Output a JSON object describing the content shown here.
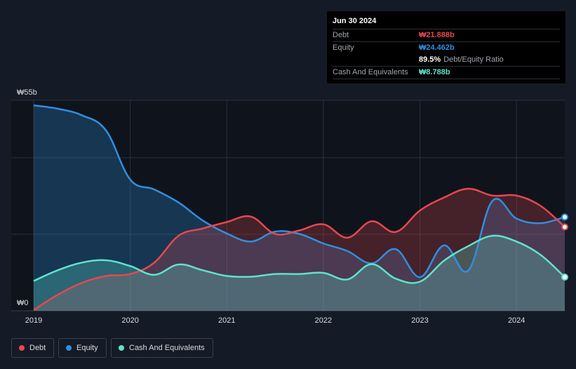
{
  "colors": {
    "background": "#151b26",
    "plot_bg": "#0f141c",
    "grid": "#2a313d",
    "axis_text": "#d8dbe0",
    "debt": "#e8474f",
    "equity": "#2f8fe0",
    "cash": "#5ee3cc"
  },
  "tooltip": {
    "date": "Jun 30 2024",
    "debt_label": "Debt",
    "debt_value": "₩21.888b",
    "equity_label": "Equity",
    "equity_value": "₩24.462b",
    "ratio_value": "89.5%",
    "ratio_label": "Debt/Equity Ratio",
    "cash_label": "Cash And Equivalents",
    "cash_value": "₩8.788b"
  },
  "legend": {
    "debt": "Debt",
    "equity": "Equity",
    "cash": "Cash And Equivalents"
  },
  "chart_data": {
    "type": "area",
    "title": "",
    "xlabel": "",
    "ylabel": "",
    "y_label_top": "₩55b",
    "y_label_bottom": "₩0",
    "ylim": [
      0,
      55
    ],
    "xlim": [
      2019.0,
      2024.5
    ],
    "x_ticks": [
      2019,
      2020,
      2021,
      2022,
      2023,
      2024
    ],
    "x_tick_labels": [
      "2019",
      "2020",
      "2021",
      "2022",
      "2023",
      "2024"
    ],
    "series": [
      {
        "name": "Debt",
        "points": [
          [
            2019.0,
            0.2
          ],
          [
            2019.25,
            4.2
          ],
          [
            2019.5,
            7.3
          ],
          [
            2019.75,
            9.1
          ],
          [
            2020.0,
            9.6
          ],
          [
            2020.25,
            12.6
          ],
          [
            2020.5,
            19.6
          ],
          [
            2020.75,
            21.5
          ],
          [
            2021.0,
            23.2
          ],
          [
            2021.25,
            24.6
          ],
          [
            2021.5,
            20.1
          ],
          [
            2021.75,
            21.0
          ],
          [
            2022.0,
            22.6
          ],
          [
            2022.25,
            19.1
          ],
          [
            2022.5,
            23.4
          ],
          [
            2022.75,
            20.6
          ],
          [
            2023.0,
            26.2
          ],
          [
            2023.25,
            29.6
          ],
          [
            2023.5,
            31.9
          ],
          [
            2023.75,
            30.1
          ],
          [
            2024.0,
            30.1
          ],
          [
            2024.25,
            27.4
          ],
          [
            2024.5,
            21.9
          ]
        ]
      },
      {
        "name": "Equity",
        "points": [
          [
            2019.0,
            53.7
          ],
          [
            2019.25,
            52.8
          ],
          [
            2019.5,
            51.1
          ],
          [
            2019.75,
            47.1
          ],
          [
            2020.0,
            34.3
          ],
          [
            2020.25,
            31.7
          ],
          [
            2020.5,
            28.3
          ],
          [
            2020.75,
            23.6
          ],
          [
            2021.0,
            20.2
          ],
          [
            2021.25,
            18.1
          ],
          [
            2021.5,
            20.7
          ],
          [
            2021.75,
            20.1
          ],
          [
            2022.0,
            17.6
          ],
          [
            2022.25,
            15.6
          ],
          [
            2022.5,
            12.4
          ],
          [
            2022.75,
            16.1
          ],
          [
            2023.0,
            8.8
          ],
          [
            2023.25,
            17.1
          ],
          [
            2023.5,
            10.5
          ],
          [
            2023.75,
            28.7
          ],
          [
            2024.0,
            24.1
          ],
          [
            2024.25,
            22.9
          ],
          [
            2024.5,
            24.5
          ]
        ]
      },
      {
        "name": "Cash And Equivalents",
        "points": [
          [
            2019.0,
            7.8
          ],
          [
            2019.25,
            10.6
          ],
          [
            2019.5,
            12.6
          ],
          [
            2019.75,
            13.2
          ],
          [
            2020.0,
            11.7
          ],
          [
            2020.25,
            9.4
          ],
          [
            2020.5,
            12.1
          ],
          [
            2020.75,
            10.6
          ],
          [
            2021.0,
            9.1
          ],
          [
            2021.25,
            8.9
          ],
          [
            2021.5,
            9.6
          ],
          [
            2021.75,
            9.6
          ],
          [
            2022.0,
            9.9
          ],
          [
            2022.25,
            8.2
          ],
          [
            2022.5,
            12.2
          ],
          [
            2022.75,
            8.4
          ],
          [
            2023.0,
            7.6
          ],
          [
            2023.25,
            13.1
          ],
          [
            2023.5,
            16.9
          ],
          [
            2023.75,
            19.6
          ],
          [
            2024.0,
            18.1
          ],
          [
            2024.25,
            14.6
          ],
          [
            2024.5,
            8.8
          ]
        ]
      }
    ]
  }
}
